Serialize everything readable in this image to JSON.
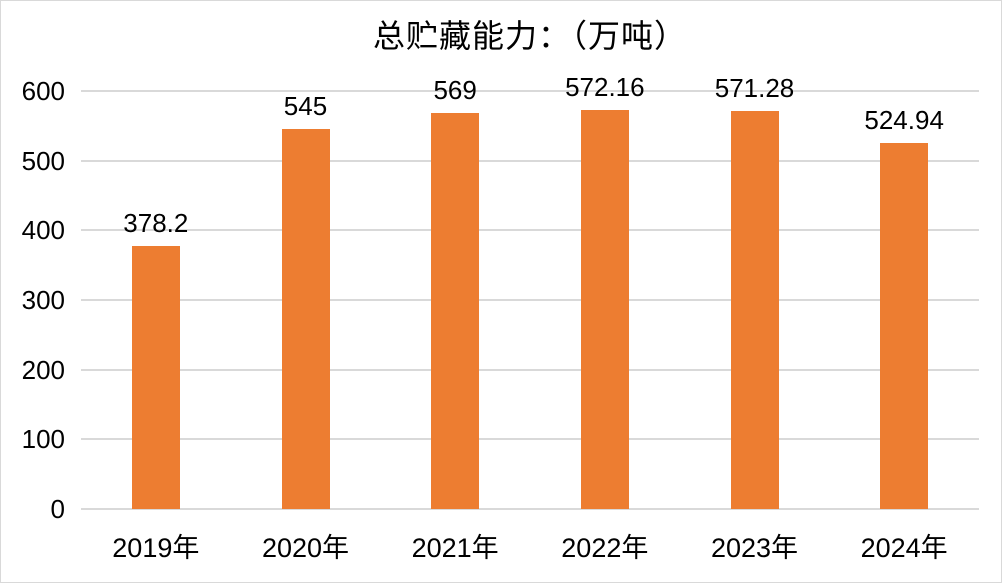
{
  "chart_data": {
    "type": "bar",
    "title": "总贮藏能力：（万吨）",
    "categories": [
      "2019年",
      "2020年",
      "2021年",
      "2022年",
      "2023年",
      "2024年"
    ],
    "values": [
      378.2,
      545,
      569,
      572.16,
      571.28,
      524.94
    ],
    "data_labels": [
      "378.2",
      "545",
      "569",
      "572.16",
      "571.28",
      "524.94"
    ],
    "xlabel": "",
    "ylabel": "",
    "ylim": [
      0,
      600
    ],
    "ytick_interval": 100,
    "ytick_labels": [
      "0",
      "100",
      "200",
      "300",
      "400",
      "500",
      "600"
    ],
    "grid": "horizontal",
    "legend": "none",
    "colors": {
      "bar": "#ED7D31",
      "gridline": "#D9D9D9",
      "axis_line": "#D9D9D9",
      "text": "#000000",
      "background": "#FFFFFF",
      "border": "#D9D9D9"
    }
  }
}
